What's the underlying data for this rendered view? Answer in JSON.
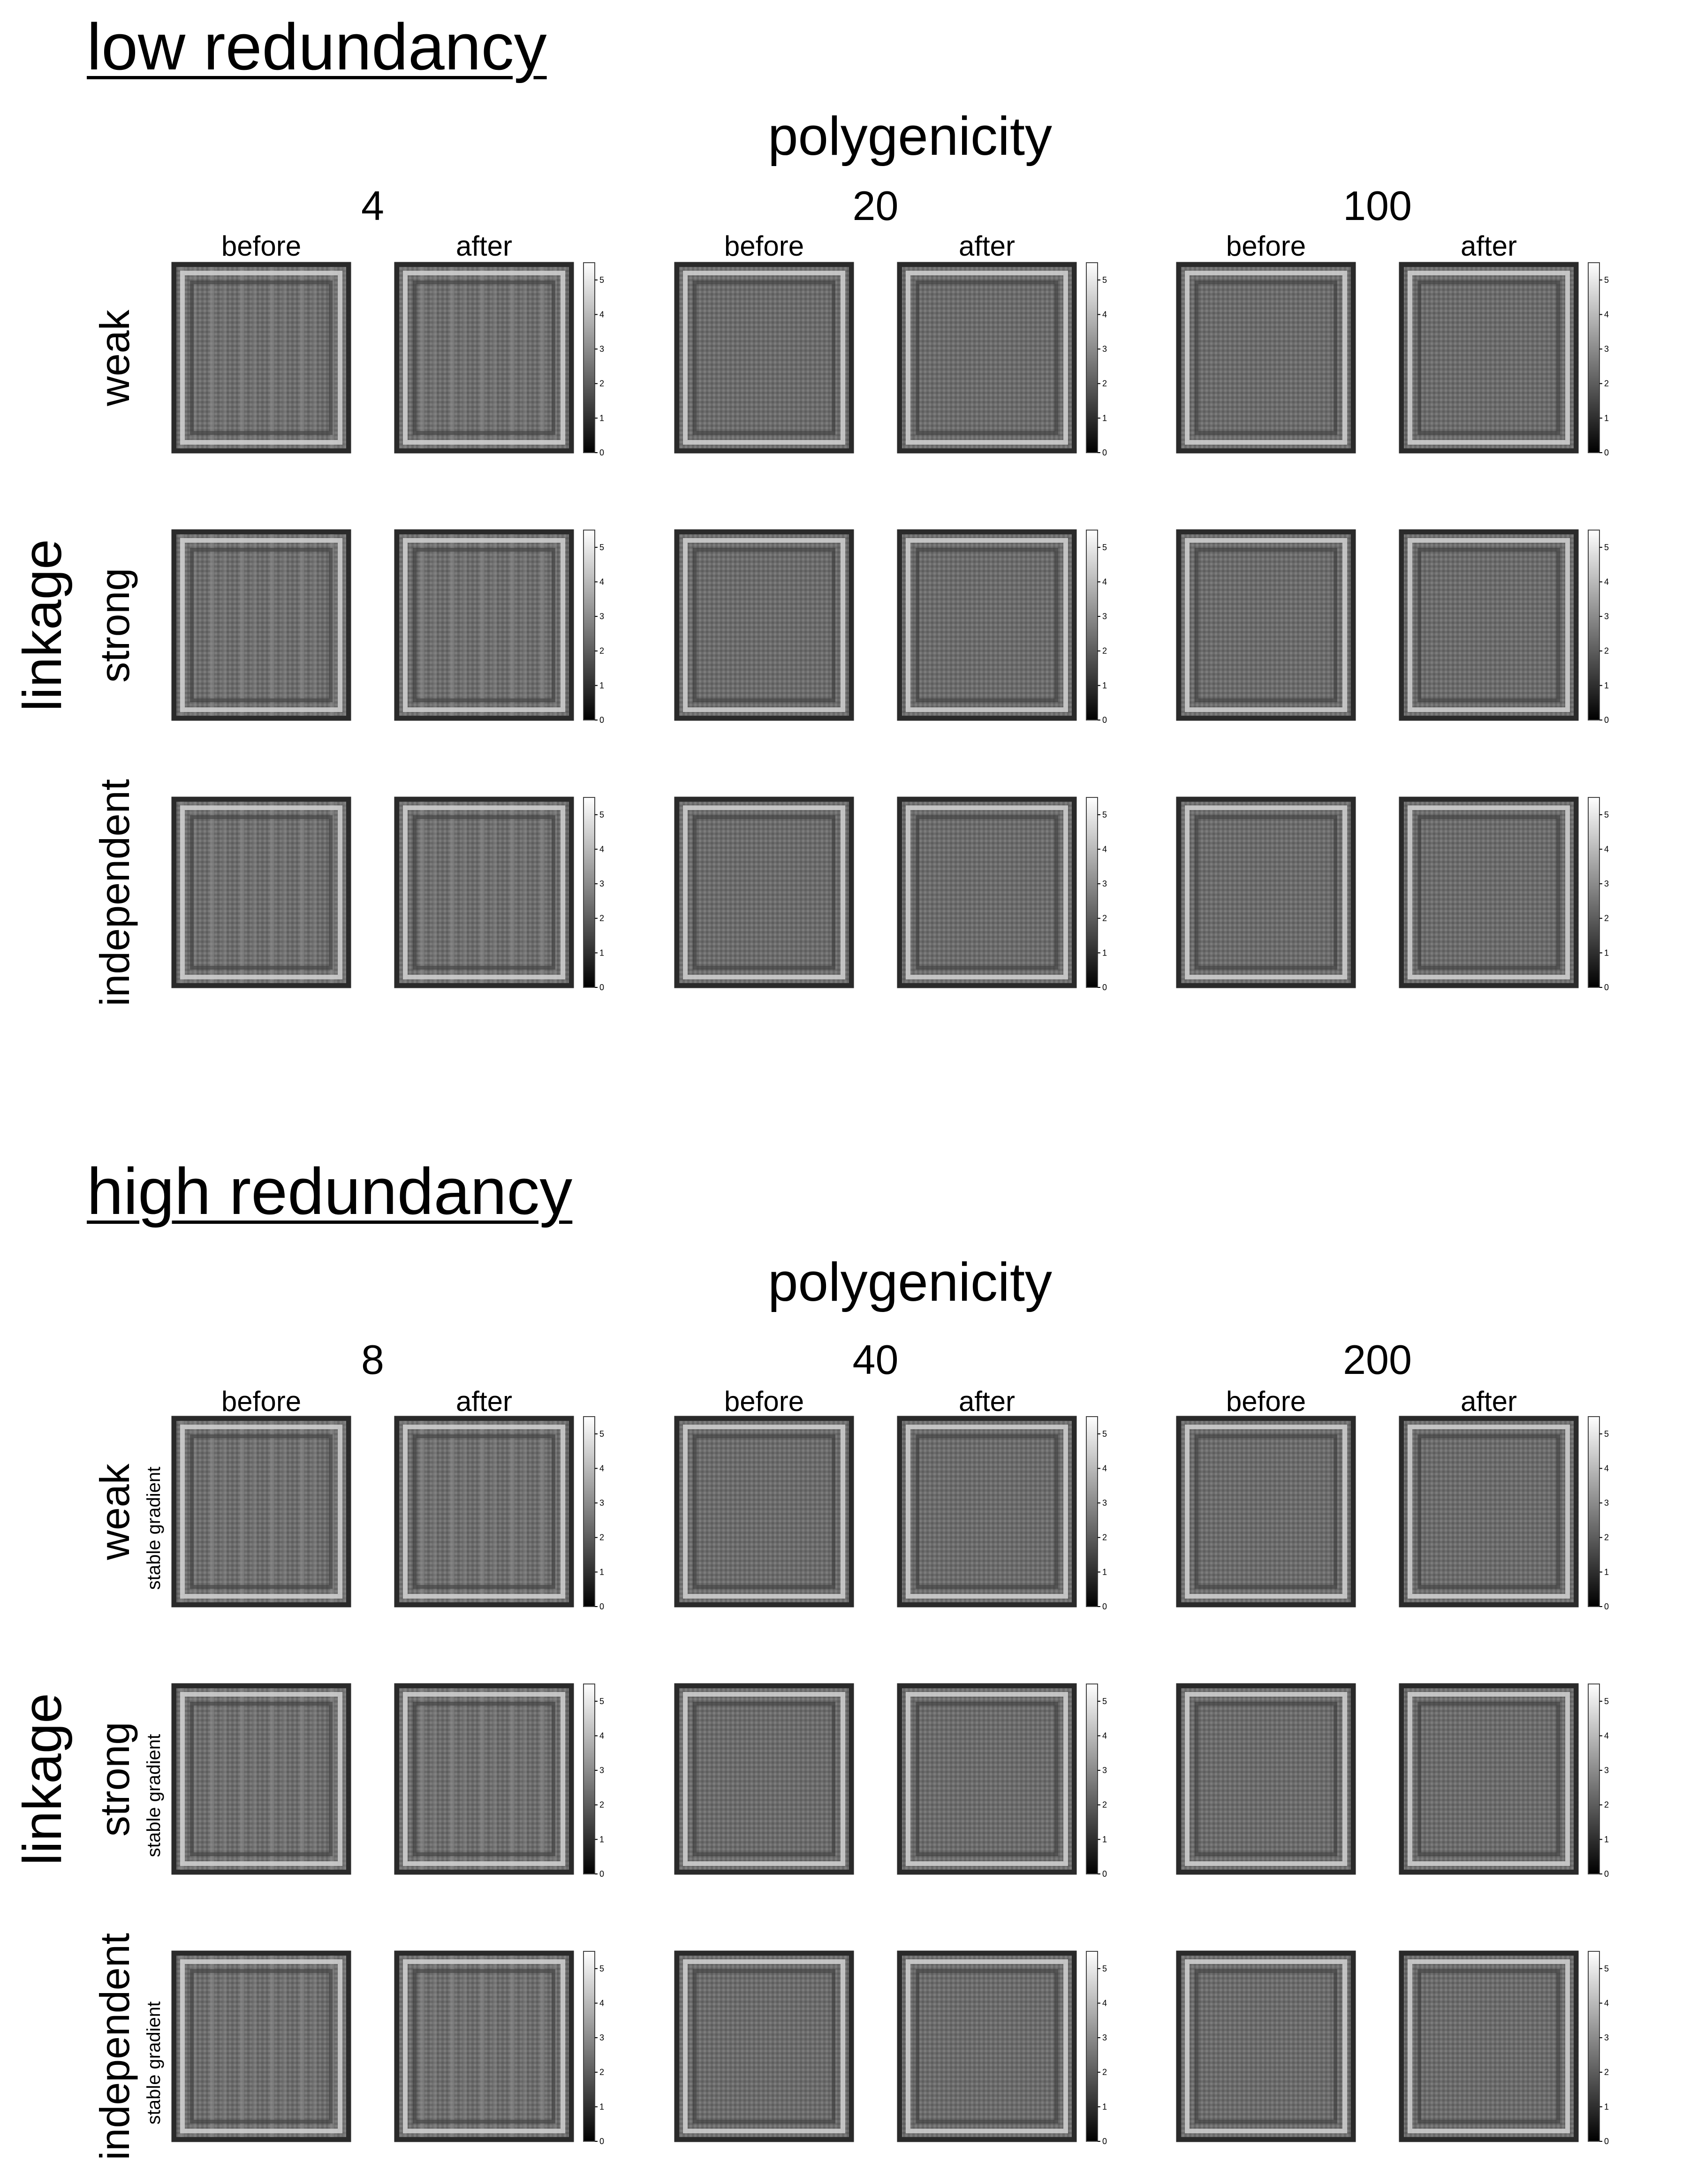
{
  "sections": [
    {
      "title": "low redundancy",
      "polygenicity_label": "polygenicity",
      "linkage_label": "linkage",
      "levels": [
        "4",
        "20",
        "100"
      ],
      "panel_labels": [
        "before",
        "after"
      ],
      "rows": [
        {
          "label": "weak",
          "sublabel": ""
        },
        {
          "label": "strong",
          "sublabel": ""
        },
        {
          "label": "independent",
          "sublabel": ""
        }
      ]
    },
    {
      "title": "high redundancy",
      "polygenicity_label": "polygenicity",
      "linkage_label": "linkage",
      "levels": [
        "8",
        "40",
        "200"
      ],
      "panel_labels": [
        "before",
        "after"
      ],
      "rows": [
        {
          "label": "weak",
          "sublabel": "stable gradient"
        },
        {
          "label": "strong",
          "sublabel": "stable gradient"
        },
        {
          "label": "independent",
          "sublabel": "stable gradient"
        }
      ]
    }
  ],
  "chart_data": {
    "type": "heatmap",
    "colormap": "gray",
    "colorbar": {
      "ticks": [
        "0",
        "1",
        "2",
        "3",
        "4",
        "5"
      ],
      "range": [
        0,
        5.5
      ]
    },
    "colors": {
      "background": "#ffffff",
      "low": "#000000",
      "high": "#ffffff",
      "panel_mid": "#6e6e6e"
    },
    "panels_per_level": [
      "before",
      "after"
    ]
  }
}
